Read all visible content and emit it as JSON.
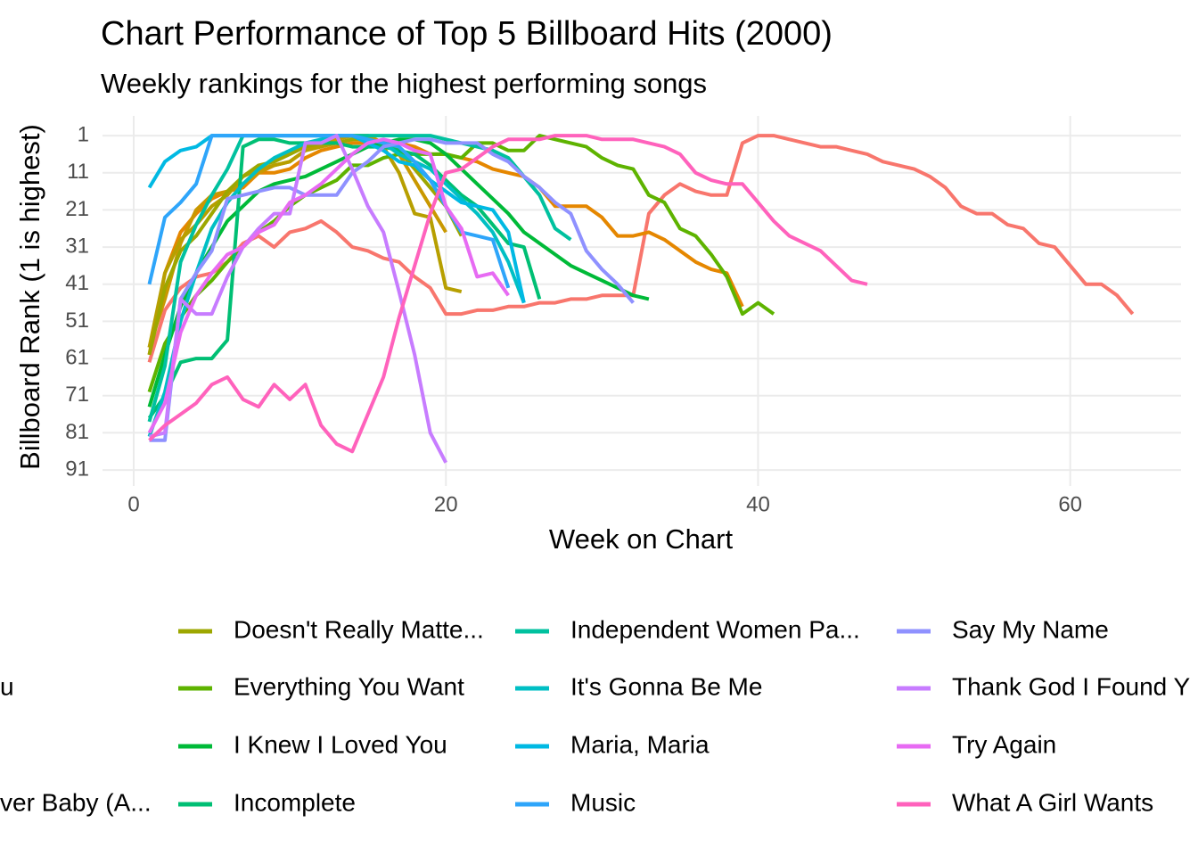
{
  "chart_data": {
    "type": "line",
    "title": "Chart Performance of Top 5 Billboard Hits (2000)",
    "subtitle": "Weekly rankings for the highest performing songs",
    "x_label": "Week on Chart",
    "y_label": "Billboard Rank (1 is highest)",
    "xlim": [
      -2.0,
      67.1
    ],
    "xticks": [
      0,
      20,
      40,
      60
    ],
    "ylim": [
      95.3,
      -4.3
    ],
    "yticks": [
      1,
      11,
      21,
      31,
      41,
      51,
      61,
      71,
      81,
      91
    ],
    "grid": true,
    "legend": "bottom",
    "series": [
      {
        "name": null,
        "color": "#F8766D",
        "x": [
          1,
          2,
          3,
          4,
          5,
          6,
          7,
          8,
          9,
          10,
          11,
          12,
          13,
          14,
          15,
          16,
          17,
          18,
          19,
          20,
          21,
          22,
          23,
          24,
          25,
          26,
          27,
          28,
          29,
          30,
          31,
          32,
          33,
          34,
          35,
          36,
          37,
          38,
          39,
          40,
          41,
          42,
          43,
          44,
          45,
          46,
          47,
          48,
          49,
          50,
          51,
          52,
          53,
          54,
          55,
          56,
          57,
          58,
          59,
          60,
          61,
          62,
          63,
          64
        ],
        "values": [
          62,
          48,
          42,
          39,
          38,
          35,
          30,
          28,
          31,
          27,
          26,
          24,
          27,
          31,
          32,
          34,
          35,
          39,
          42,
          49,
          49,
          48,
          48,
          47,
          47,
          46,
          46,
          45,
          45,
          44,
          44,
          44,
          22,
          17,
          14,
          16,
          17,
          17,
          3,
          1,
          1,
          2,
          3,
          4,
          4,
          5,
          6,
          8,
          9,
          10,
          12,
          15,
          20,
          22,
          22,
          25,
          26,
          30,
          31,
          36,
          41,
          41,
          44,
          49
        ]
      },
      {
        "name": "u",
        "color": "#E58700",
        "x": [
          1,
          2,
          3,
          4,
          5,
          6,
          7,
          8,
          9,
          10,
          11,
          12,
          13,
          14,
          15,
          16,
          17,
          18,
          19,
          20,
          21,
          22,
          23,
          24,
          25,
          26,
          27,
          28,
          29,
          30,
          31,
          32,
          33,
          34,
          35,
          36,
          37,
          38,
          39
        ],
        "values": [
          60,
          38,
          27,
          22,
          18,
          16,
          15,
          11,
          11,
          10,
          7,
          5,
          4,
          3,
          3,
          3,
          3,
          4,
          6,
          6,
          7,
          8,
          10,
          11,
          12,
          15,
          20,
          20,
          20,
          23,
          28,
          28,
          27,
          29,
          32,
          35,
          37,
          38,
          47
        ]
      },
      {
        "name": null,
        "color": "#C99800",
        "x": [
          1,
          2,
          3,
          4,
          5,
          6,
          7,
          8,
          9,
          10,
          11,
          12,
          13,
          14,
          15,
          16,
          17,
          18,
          19,
          20
        ],
        "values": [
          58,
          45,
          30,
          21,
          17,
          16,
          14,
          11,
          9,
          8,
          5,
          3,
          2,
          1,
          1,
          3,
          6,
          13,
          20,
          27
        ]
      },
      {
        "name": "ver Baby (A...",
        "color": "#B79F00",
        "x": [
          1,
          2,
          3,
          4,
          5,
          6,
          7,
          8,
          9,
          10,
          11,
          12,
          13,
          14,
          15,
          16,
          17,
          18,
          19,
          20,
          21
        ],
        "values": [
          58,
          38,
          29,
          25,
          20,
          17,
          12,
          10,
          9,
          8,
          5,
          4,
          3,
          2,
          2,
          4,
          11,
          22,
          23,
          42,
          43
        ]
      },
      {
        "name": "Doesn't Really Matte...",
        "color": "#9DA700",
        "x": [
          1,
          2,
          3,
          4,
          5,
          6,
          7,
          8,
          9,
          10,
          11,
          12,
          13,
          14,
          15,
          16,
          17,
          18,
          19,
          20,
          21
        ],
        "values": [
          60,
          42,
          32,
          28,
          22,
          16,
          12,
          9,
          8,
          6,
          4,
          3,
          3,
          2,
          2,
          3,
          5,
          10,
          15,
          20,
          28
        ]
      },
      {
        "name": "Everything You Want",
        "color": "#5EB300",
        "x": [
          1,
          2,
          3,
          4,
          5,
          6,
          7,
          8,
          9,
          10,
          11,
          12,
          13,
          14,
          15,
          16,
          17,
          18,
          19,
          20,
          21,
          22,
          23,
          24,
          25,
          26,
          27,
          28,
          29,
          30,
          31,
          32,
          33,
          34,
          35,
          36,
          37,
          38,
          39,
          40,
          41
        ],
        "values": [
          70,
          57,
          50,
          44,
          40,
          35,
          31,
          27,
          24,
          20,
          17,
          15,
          13,
          9,
          9,
          7,
          6,
          6,
          6,
          6,
          7,
          3,
          3,
          5,
          5,
          1,
          2,
          3,
          4,
          7,
          9,
          10,
          17,
          19,
          26,
          28,
          33,
          39,
          49,
          46,
          49
        ]
      },
      {
        "name": "I Knew I Loved You",
        "color": "#00BA38",
        "x": [
          1,
          2,
          3,
          4,
          5,
          6,
          7,
          8,
          9,
          10,
          11,
          12,
          13,
          14,
          15,
          16,
          17,
          18,
          19,
          20,
          21,
          22,
          23,
          24,
          25,
          26,
          27,
          28,
          29,
          30,
          31,
          32,
          33
        ],
        "values": [
          74,
          60,
          47,
          38,
          31,
          24,
          20,
          16,
          14,
          13,
          12,
          10,
          8,
          6,
          4,
          3,
          2,
          2,
          3,
          6,
          10,
          14,
          18,
          22,
          27,
          30,
          33,
          36,
          38,
          40,
          42,
          44,
          45
        ]
      },
      {
        "name": "Incomplete",
        "color": "#00BF74",
        "x": [
          1,
          2,
          3,
          4,
          5,
          6,
          7,
          8,
          9,
          10,
          11,
          12,
          13,
          14,
          15,
          16,
          17,
          18,
          19,
          20,
          21,
          22,
          23,
          24,
          25,
          26
        ],
        "values": [
          77,
          71,
          62,
          61,
          61,
          56,
          4,
          2,
          2,
          3,
          3,
          3,
          3,
          4,
          4,
          4,
          5,
          6,
          9,
          13,
          17,
          20,
          25,
          30,
          31,
          45
        ]
      },
      {
        "name": "Independent Women Pa...",
        "color": "#00C19F",
        "x": [
          1,
          2,
          3,
          4,
          5,
          6,
          7,
          8,
          9,
          10,
          11,
          12,
          13,
          14,
          15,
          16,
          17,
          18,
          19,
          20,
          21,
          22,
          23,
          24,
          25,
          26,
          27,
          28
        ],
        "values": [
          78,
          63,
          35,
          25,
          17,
          10,
          1,
          1,
          1,
          1,
          1,
          1,
          1,
          1,
          1,
          1,
          1,
          1,
          1,
          2,
          3,
          4,
          5,
          7,
          12,
          17,
          26,
          29
        ]
      },
      {
        "name": "It's Gonna Be Me",
        "color": "#00BFC4",
        "x": [
          1,
          2,
          3,
          4,
          5,
          6,
          7,
          8,
          9,
          10,
          11,
          12,
          13,
          14,
          15,
          16,
          17,
          18,
          19,
          20,
          21,
          22,
          23,
          24,
          25
        ],
        "values": [
          82,
          70,
          51,
          38,
          26,
          19,
          14,
          10,
          7,
          5,
          3,
          2,
          1,
          1,
          2,
          3,
          6,
          8,
          10,
          14,
          18,
          22,
          27,
          35,
          46
        ]
      },
      {
        "name": "Maria, Maria",
        "color": "#00B9E3",
        "x": [
          1,
          2,
          3,
          4,
          5,
          6,
          7,
          8,
          9,
          10,
          11,
          12,
          13,
          14,
          15,
          16,
          17,
          18,
          19,
          20,
          21,
          22,
          23,
          24,
          25
        ],
        "values": [
          15,
          8,
          5,
          4,
          1,
          1,
          1,
          1,
          1,
          1,
          1,
          1,
          1,
          1,
          3,
          5,
          8,
          9,
          13,
          16,
          19,
          20,
          21,
          27,
          46
        ]
      },
      {
        "name": "Music",
        "color": "#2EA5FA",
        "x": [
          1,
          2,
          3,
          4,
          5,
          6,
          7,
          8,
          9,
          10,
          11,
          12,
          13,
          14,
          15,
          16,
          17,
          18,
          19,
          20,
          21,
          22,
          23,
          24
        ],
        "values": [
          41,
          23,
          19,
          14,
          1,
          1,
          1,
          1,
          1,
          1,
          1,
          1,
          1,
          1,
          2,
          3,
          4,
          8,
          13,
          20,
          27,
          28,
          29,
          42
        ]
      },
      {
        "name": "Say My Name",
        "color": "#8F91FF",
        "x": [
          1,
          2,
          3,
          4,
          5,
          6,
          7,
          8,
          9,
          10,
          11,
          12,
          13,
          14,
          15,
          16,
          17,
          18,
          19,
          20,
          21,
          22,
          23,
          24,
          25,
          26,
          27,
          28,
          29,
          30,
          31,
          32
        ],
        "values": [
          83,
          83,
          45,
          38,
          32,
          18,
          17,
          16,
          15,
          15,
          17,
          17,
          17,
          11,
          8,
          4,
          3,
          2,
          2,
          3,
          3,
          3,
          6,
          8,
          12,
          15,
          19,
          22,
          32,
          37,
          41,
          46
        ]
      },
      {
        "name": "Thank God I Found Y",
        "color": "#C77CFF",
        "x": [
          1,
          2,
          3,
          4,
          5,
          6,
          7,
          8,
          9,
          10,
          11,
          12,
          13,
          14,
          15,
          16,
          17,
          18,
          19,
          20
        ],
        "values": [
          82,
          81,
          45,
          49,
          49,
          39,
          31,
          26,
          22,
          22,
          3,
          3,
          1,
          10,
          20,
          27,
          43,
          60,
          81,
          89
        ]
      },
      {
        "name": "Try Again",
        "color": "#E76BF3",
        "x": [
          1,
          2,
          3,
          4,
          5,
          6,
          7,
          8,
          9,
          10,
          11,
          12,
          13,
          14,
          15,
          16,
          17,
          18,
          19,
          20,
          21,
          22,
          23,
          24
        ],
        "values": [
          81,
          73,
          54,
          44,
          38,
          33,
          31,
          27,
          25,
          19,
          17,
          14,
          10,
          6,
          3,
          2,
          3,
          5,
          6,
          20,
          26,
          39,
          38,
          44
        ]
      },
      {
        "name": "What A Girl Wants",
        "color": "#FF62BC",
        "x": [
          1,
          2,
          3,
          4,
          5,
          6,
          7,
          8,
          9,
          10,
          11,
          12,
          13,
          14,
          15,
          16,
          17,
          18,
          19,
          20,
          21,
          22,
          23,
          24,
          25,
          26,
          27,
          28,
          29,
          30,
          31,
          32,
          33,
          34,
          35,
          36,
          37,
          38,
          39,
          40,
          41,
          42,
          43,
          44,
          45,
          46,
          47
        ],
        "values": [
          83,
          79,
          76,
          73,
          68,
          66,
          72,
          74,
          68,
          72,
          68,
          79,
          84,
          86,
          76,
          66,
          50,
          36,
          22,
          11,
          10,
          7,
          4,
          2,
          2,
          2,
          1,
          1,
          1,
          2,
          2,
          2,
          3,
          4,
          6,
          11,
          13,
          14,
          14,
          19,
          24,
          28,
          30,
          32,
          36,
          40,
          41
        ]
      }
    ]
  }
}
